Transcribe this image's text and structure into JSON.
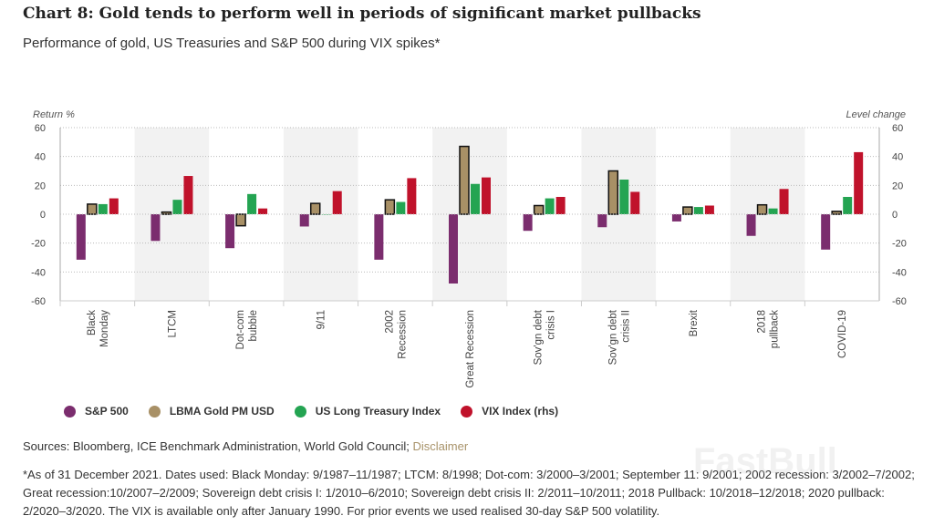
{
  "title": "Chart 8: Gold tends to perform well in periods of significant market pullbacks",
  "subtitle": "Performance of gold, US Treasuries and S&P 500 during VIX spikes*",
  "sources": "Sources: Bloomberg, ICE Benchmark Administration, World Gold Council;",
  "disclaimer": "Disclaimer",
  "note": "*As of 31 December 2021. Dates used: Black Monday: 9/1987–11/1987; LTCM: 8/1998; Dot-com: 3/2000–3/2001; September 11: 9/2001; 2002 recession: 3/2002–7/2002; Great recession:10/2007–2/2009; Sovereign debt crisis I: 1/2010–6/2010; Sovereign debt crisis II: 2/2011–10/2011; 2018 Pullback: 10/2018–12/2018; 2020 pullback: 2/2020–3/2020. The VIX is available only after January 1990. For prior events we used realised 30-day S&P 500 volatility.",
  "watermark": "FastBull",
  "chart_data": {
    "type": "bar",
    "ylabel": "Return %",
    "y2label": "Level change",
    "ylim": [
      -60,
      60
    ],
    "y2lim": [
      -60,
      60
    ],
    "yticks": [
      60,
      40,
      20,
      0,
      -20,
      -40,
      -60
    ],
    "grid": true,
    "legend": "bottom",
    "categories": [
      [
        "Black",
        "Monday"
      ],
      [
        "LTCM"
      ],
      [
        "Dot-com",
        "bubble"
      ],
      [
        "9/11"
      ],
      [
        "2002",
        "Recession"
      ],
      [
        "Great Recession"
      ],
      [
        "Sov'gn debt",
        "crisis I"
      ],
      [
        "Sov'gn debt",
        "crisis II"
      ],
      [
        "Brexit"
      ],
      [
        "2018",
        "pullback"
      ],
      [
        "COVID-19"
      ]
    ],
    "series": [
      {
        "name": "S&P 500",
        "color": "#7b2d6e",
        "values": [
          -31.5,
          -18.5,
          -23.5,
          -8.5,
          -31.5,
          -48,
          -11.5,
          -9,
          -5,
          -15,
          -24.5
        ]
      },
      {
        "name": "LBMA Gold PM USD",
        "color": "#a89066",
        "outlined": true,
        "values": [
          7,
          1.5,
          -8,
          7.5,
          10,
          47,
          6,
          30,
          5,
          6.5,
          2
        ]
      },
      {
        "name": "US Long Treasury Index",
        "color": "#24a452",
        "values": [
          7,
          10,
          14,
          0,
          8.5,
          21,
          11,
          24,
          5,
          4,
          12
        ]
      },
      {
        "name": "VIX Index (rhs)",
        "color": "#c0122b",
        "values": [
          11,
          26.5,
          4,
          16,
          25,
          25.5,
          12,
          15.5,
          6,
          17.5,
          43
        ]
      }
    ]
  }
}
